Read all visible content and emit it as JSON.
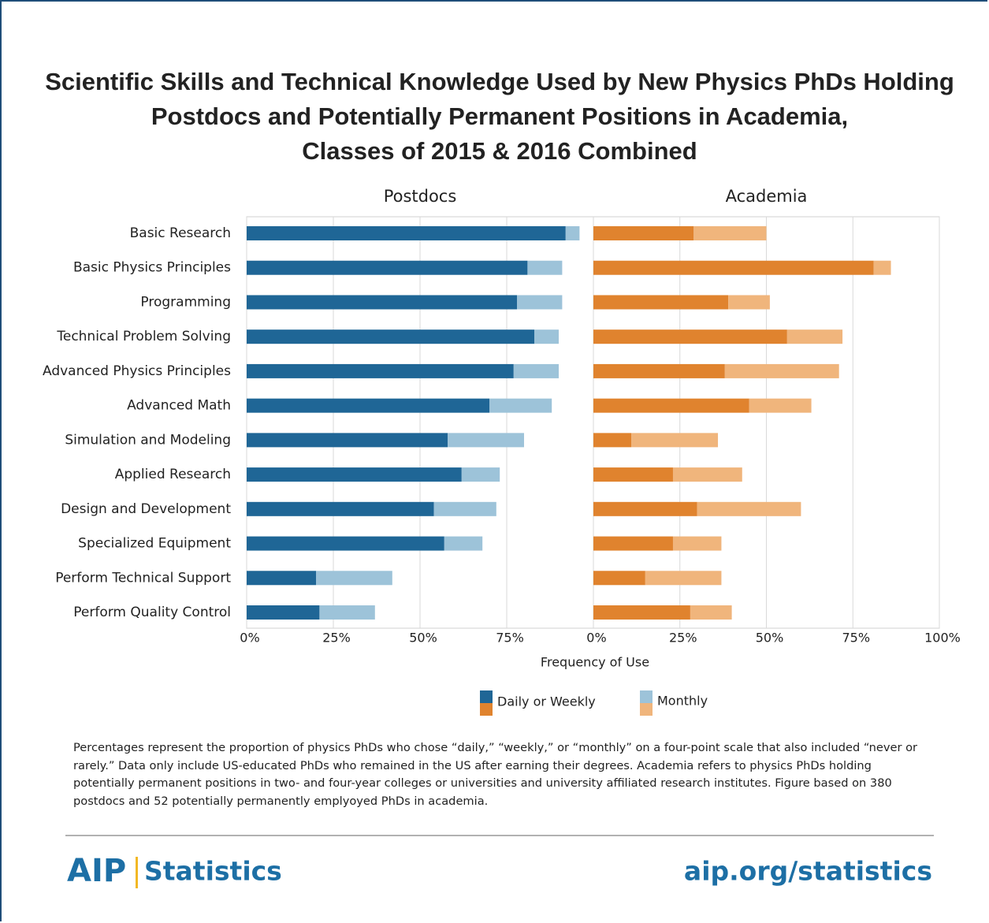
{
  "chart_data": {
    "type": "bar",
    "orientation": "horizontal",
    "title": [
      "Scientific Skills and Technical Knowledge Used by New Physics PhDs Holding",
      "Postdocs and Potentially Permanent Positions in Academia,",
      "Classes of 2015 & 2016 Combined"
    ],
    "xlabel": "Frequency of Use",
    "categories": [
      "Basic Research",
      "Basic Physics Principles",
      "Programming",
      "Technical Problem Solving",
      "Advanced Physics Principles",
      "Advanced Math",
      "Simulation and Modeling",
      "Applied Research",
      "Design and Development",
      "Specialized Equipment",
      "Perform Technical Support",
      "Perform Quality Control"
    ],
    "legend": [
      {
        "name": "Daily or Weekly",
        "colors": [
          "#1f6696",
          "#e0832e"
        ]
      },
      {
        "name": "Monthly",
        "colors": [
          "#9dc3d9",
          "#f0b57c"
        ]
      }
    ],
    "grid": true,
    "stacked": true,
    "panels": [
      {
        "title": "Postdocs",
        "xlim": [
          0,
          100
        ],
        "xticks": [
          {
            "value": 0,
            "label": "0%"
          },
          {
            "value": 25,
            "label": "25%"
          },
          {
            "value": 50,
            "label": "50%"
          },
          {
            "value": 75,
            "label": "75%"
          }
        ],
        "series": [
          {
            "color": "#1f6696",
            "values": [
              92,
              81,
              78,
              83,
              77,
              70,
              58,
              62,
              54,
              57,
              20,
              21
            ]
          },
          {
            "color": "#9dc3d9",
            "values": [
              4,
              10,
              13,
              7,
              13,
              18,
              22,
              11,
              18,
              11,
              22,
              16
            ]
          }
        ]
      },
      {
        "title": "Academia",
        "xlim": [
          0,
          100
        ],
        "xticks": [
          {
            "value": 0,
            "label": "0%"
          },
          {
            "value": 25,
            "label": "25%"
          },
          {
            "value": 50,
            "label": "50%"
          },
          {
            "value": 75,
            "label": "75%"
          },
          {
            "value": 100,
            "label": "100%"
          }
        ],
        "series": [
          {
            "color": "#e0832e",
            "values": [
              29,
              81,
              39,
              56,
              38,
              45,
              11,
              23,
              30,
              23,
              15,
              28
            ]
          },
          {
            "color": "#f0b57c",
            "values": [
              21,
              5,
              12,
              16,
              33,
              18,
              25,
              20,
              30,
              14,
              22,
              12
            ]
          }
        ]
      }
    ]
  },
  "note": "Percentages represent the proportion of physics PhDs who chose “daily,” “weekly,” or “monthly” on a four-point scale that also included “never or rarely.” Data only include US-educated PhDs who remained in the US after earning their degrees. Academia refers to physics PhDs holding potentially permanent positions in two- and four-year colleges or universities and university affiliated research institutes. Figure based on 380 postdocs and 52 potentially permanently emplyoyed PhDs in academia.",
  "footer": {
    "logo": "AIP",
    "logo_text": "Statistics",
    "url": "aip.org/statistics"
  }
}
